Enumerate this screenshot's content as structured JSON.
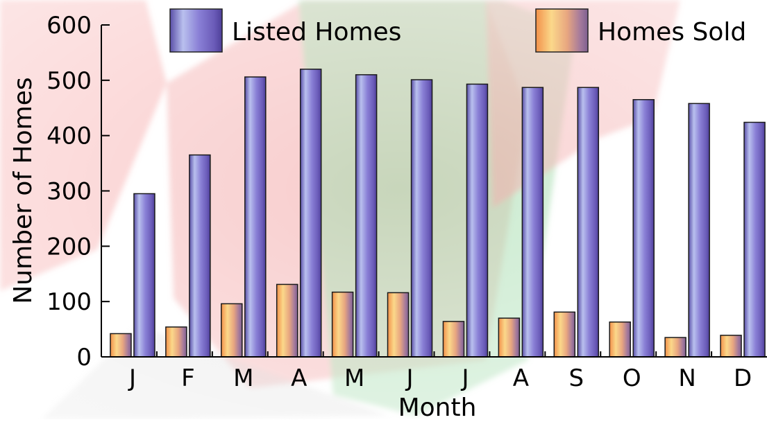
{
  "chart_data": {
    "type": "bar",
    "title": "",
    "xlabel": "Month",
    "ylabel": "Number of Homes",
    "categories": [
      "J",
      "F",
      "M",
      "A",
      "M",
      "J",
      "J",
      "A",
      "S",
      "O",
      "N",
      "D"
    ],
    "series": [
      {
        "name": "Homes Sold",
        "values": [
          42,
          54,
          96,
          131,
          117,
          116,
          64,
          70,
          81,
          63,
          35,
          39
        ],
        "color": "#F4A460"
      },
      {
        "name": "Listed Homes",
        "values": [
          295,
          365,
          506,
          520,
          510,
          501,
          493,
          487,
          487,
          465,
          458,
          424
        ],
        "color": "#7B68C8"
      }
    ],
    "ylim": [
      0,
      600
    ],
    "yticks": [
      0,
      100,
      200,
      300,
      400,
      500,
      600
    ],
    "legend": [
      "Listed Homes",
      "Homes Sold"
    ],
    "legend_position": "top",
    "grid": false,
    "colors": {
      "listed": "#7B68C8",
      "sold": "#F4A460",
      "bg_red": "#F08080",
      "bg_green": "#9FD8A8"
    }
  }
}
